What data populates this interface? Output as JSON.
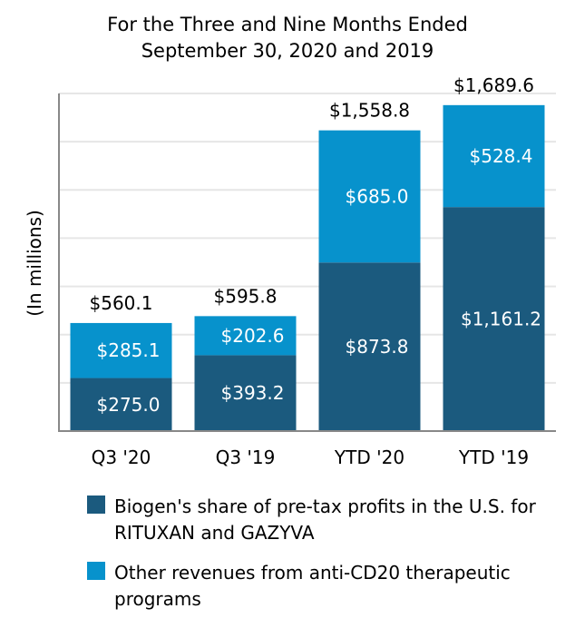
{
  "chart_data": {
    "type": "bar",
    "stacked": true,
    "title": "For the Three and Nine Months Ended",
    "subtitle": "September 30, 2020 and 2019",
    "ylabel": "(In millions)",
    "xlabel": "",
    "categories": [
      "Q3 '20",
      "Q3 '19",
      "YTD '20",
      "YTD '19"
    ],
    "ylim": [
      0,
      1750
    ],
    "grid": true,
    "legend_position": "bottom",
    "series": [
      {
        "name": "Biogen's share of pre-tax profits in the U.S. for RITUXAN and GAZYVA",
        "color": "#1b5a7e",
        "values": [
          275.0,
          393.2,
          873.8,
          1161.2
        ],
        "labels": [
          "$275.0",
          "$393.2",
          "$873.8",
          "$1,161.2"
        ]
      },
      {
        "name": "Other revenues from anti-CD20 therapeutic programs",
        "color": "#0792cc",
        "values": [
          285.1,
          202.6,
          685.0,
          528.4
        ],
        "labels": [
          "$285.1",
          "$202.6",
          "$685.0",
          "$528.4"
        ]
      }
    ],
    "totals": [
      560.1,
      595.8,
      1558.8,
      1689.6
    ],
    "total_labels": [
      "$560.1",
      "$595.8",
      "$1,558.8",
      "$1,689.6"
    ]
  },
  "legend": [
    {
      "label": "Biogen's share of pre-tax profits in the U.S. for\nRITUXAN and GAZYVA",
      "color": "#1b5a7e"
    },
    {
      "label": "Other revenues from anti-CD20 therapeutic\nprograms",
      "color": "#0792cc"
    }
  ]
}
